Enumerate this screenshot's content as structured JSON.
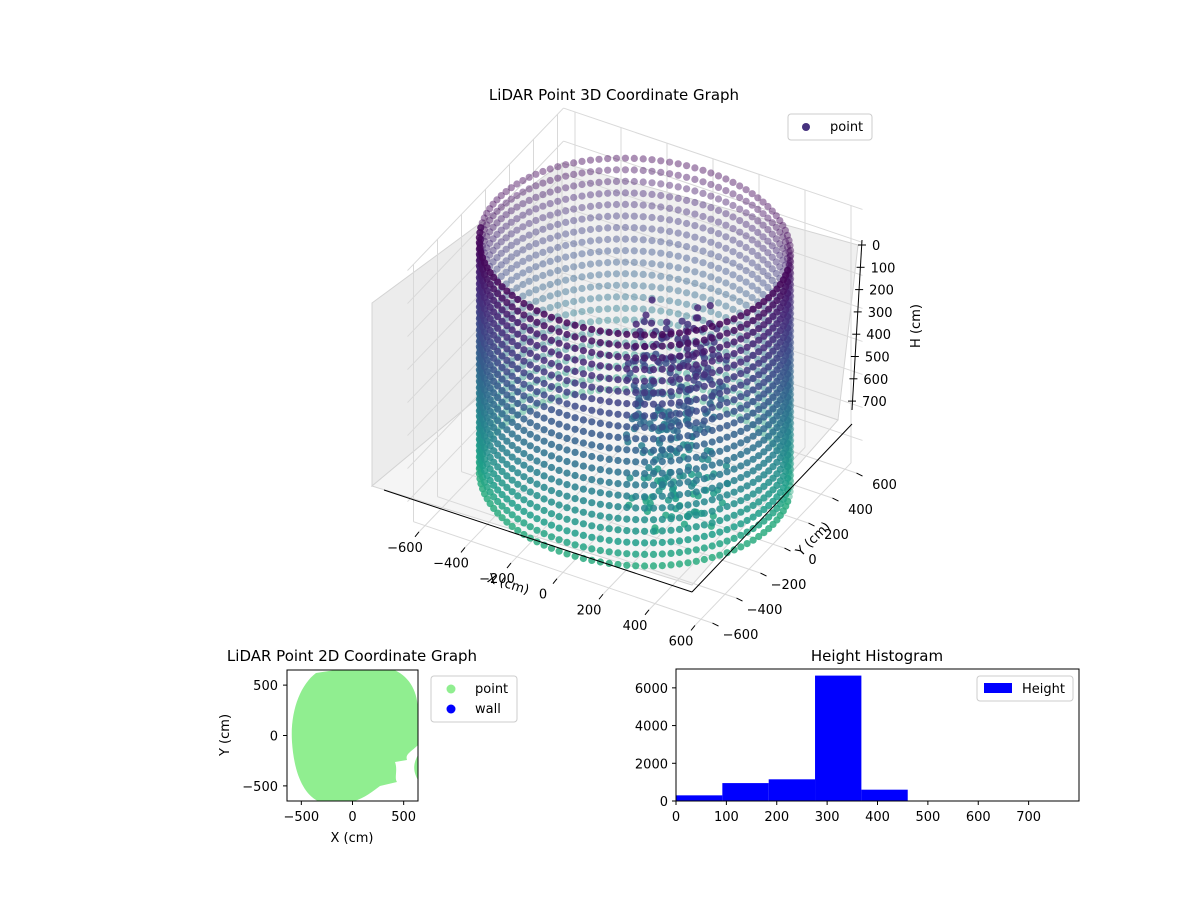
{
  "chart_data": [
    {
      "type": "scatter",
      "projection": "3d",
      "title": "LiDAR Point 3D Coordinate Graph",
      "xlabel": "X (cm)",
      "ylabel": "Y (cm)",
      "zlabel": "H (cm)",
      "xticks": [
        -600,
        -400,
        -200,
        0,
        200,
        400,
        600
      ],
      "yticks": [
        -600,
        -400,
        -200,
        0,
        200,
        400,
        600
      ],
      "zticks": [
        0,
        100,
        200,
        300,
        400,
        500,
        600,
        700
      ],
      "zaxis_inverted": true,
      "xlim": [
        -650,
        650
      ],
      "ylim": [
        -650,
        650
      ],
      "zlim": [
        0,
        780
      ],
      "legend": {
        "position": "top-right",
        "entries": [
          {
            "name": "point",
            "color": "#46327e"
          }
        ]
      },
      "colormap": "viridis",
      "description_shape": "cylindrical wall of points, radius ~600 cm, heights ~20-720 cm, with a cluster of obstacle points near x 100-400, y -300-0"
    },
    {
      "type": "scatter",
      "title": "LiDAR Point 2D Coordinate Graph",
      "xlabel": "X (cm)",
      "ylabel": "Y (cm)",
      "xticks": [
        -500,
        0,
        500
      ],
      "yticks": [
        500,
        0,
        -500
      ],
      "xlim": [
        -640,
        640
      ],
      "ylim": [
        -650,
        650
      ],
      "legend": {
        "position": "right-outside",
        "entries": [
          {
            "name": "point",
            "color": "#90ee90"
          },
          {
            "name": "wall",
            "color": "#0000ff"
          }
        ]
      }
    },
    {
      "type": "bar",
      "title": "Height Histogram",
      "series": [
        {
          "name": "Height",
          "color": "#0000ff",
          "bins": [
            {
              "x0": 0,
              "x1": 92,
              "value": 300
            },
            {
              "x0": 92,
              "x1": 184,
              "value": 950
            },
            {
              "x0": 184,
              "x1": 276,
              "value": 1150
            },
            {
              "x0": 276,
              "x1": 368,
              "value": 6650
            },
            {
              "x0": 368,
              "x1": 460,
              "value": 600
            },
            {
              "x0": 460,
              "x1": 552,
              "value": 8
            },
            {
              "x0": 552,
              "x1": 644,
              "value": 5
            },
            {
              "x0": 644,
              "x1": 736,
              "value": 4
            }
          ]
        }
      ],
      "xticks": [
        0,
        100,
        200,
        300,
        400,
        500,
        600,
        700
      ],
      "yticks": [
        0,
        2000,
        4000,
        6000
      ],
      "xlim": [
        0,
        800
      ],
      "ylim": [
        0,
        7000
      ],
      "legend": {
        "position": "top-right",
        "entries": [
          {
            "name": "Height",
            "color": "#0000ff"
          }
        ]
      }
    }
  ]
}
